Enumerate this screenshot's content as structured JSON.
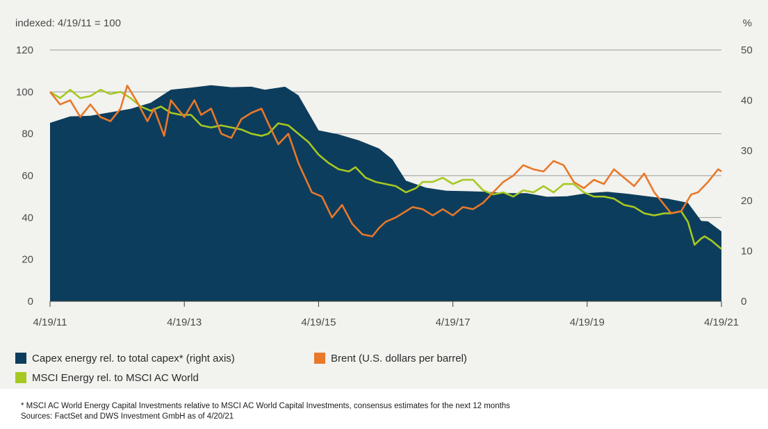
{
  "chart_data": {
    "type": "line",
    "left_axis_note": "indexed: 4/19/11 = 100",
    "right_axis_note": "%",
    "x_tick_labels": [
      "4/19/11",
      "4/19/13",
      "4/19/15",
      "4/19/17",
      "4/19/19",
      "4/19/21"
    ],
    "x_range": [
      2011.3,
      2021.3
    ],
    "left_axis": {
      "range": [
        0,
        120
      ],
      "ticks": [
        "0",
        "20",
        "40",
        "60",
        "80",
        "100",
        "120"
      ]
    },
    "right_axis": {
      "range": [
        0,
        50
      ],
      "ticks": [
        "0",
        "10",
        "20",
        "30",
        "40",
        "50"
      ]
    },
    "grid": "horizontal",
    "legend_position": "bottom",
    "series": [
      {
        "name": "Capex energy rel. to total capex* (right axis)",
        "type": "area",
        "axis": "right",
        "color": "#0d3d5c",
        "points": [
          [
            2011.3,
            35.5
          ],
          [
            2011.6,
            36.8
          ],
          [
            2011.9,
            36.9
          ],
          [
            2012.2,
            37.6
          ],
          [
            2012.5,
            38.3
          ],
          [
            2012.8,
            39.5
          ],
          [
            2013.1,
            42.1
          ],
          [
            2013.4,
            42.5
          ],
          [
            2013.7,
            43.0
          ],
          [
            2014.0,
            42.6
          ],
          [
            2014.3,
            42.7
          ],
          [
            2014.5,
            42.1
          ],
          [
            2014.8,
            42.7
          ],
          [
            2015.0,
            41.0
          ],
          [
            2015.3,
            34.0
          ],
          [
            2015.6,
            33.2
          ],
          [
            2015.9,
            32.0
          ],
          [
            2016.2,
            30.4
          ],
          [
            2016.4,
            28.2
          ],
          [
            2016.6,
            24.0
          ],
          [
            2016.9,
            22.6
          ],
          [
            2017.2,
            22.0
          ],
          [
            2017.5,
            21.9
          ],
          [
            2017.8,
            21.8
          ],
          [
            2018.1,
            21.5
          ],
          [
            2018.4,
            21.5
          ],
          [
            2018.7,
            20.8
          ],
          [
            2019.0,
            20.9
          ],
          [
            2019.3,
            21.5
          ],
          [
            2019.6,
            21.8
          ],
          [
            2019.9,
            21.4
          ],
          [
            2020.2,
            20.9
          ],
          [
            2020.5,
            20.4
          ],
          [
            2020.8,
            19.6
          ],
          [
            2021.0,
            16.0
          ],
          [
            2021.1,
            15.9
          ],
          [
            2021.3,
            13.9
          ]
        ]
      },
      {
        "name": "Brent (U.S. dollars per barrel)",
        "type": "line",
        "axis": "left",
        "color": "#e8782a",
        "points": [
          [
            2011.3,
            100
          ],
          [
            2011.45,
            94
          ],
          [
            2011.6,
            96
          ],
          [
            2011.75,
            88
          ],
          [
            2011.9,
            94
          ],
          [
            2012.05,
            88
          ],
          [
            2012.2,
            86
          ],
          [
            2012.35,
            92
          ],
          [
            2012.45,
            103
          ],
          [
            2012.6,
            95
          ],
          [
            2012.75,
            86
          ],
          [
            2012.85,
            92
          ],
          [
            2013.0,
            79
          ],
          [
            2013.1,
            96
          ],
          [
            2013.2,
            92
          ],
          [
            2013.3,
            88
          ],
          [
            2013.45,
            96
          ],
          [
            2013.55,
            89
          ],
          [
            2013.7,
            92
          ],
          [
            2013.85,
            80
          ],
          [
            2014.0,
            78
          ],
          [
            2014.15,
            87
          ],
          [
            2014.3,
            90
          ],
          [
            2014.45,
            92
          ],
          [
            2014.55,
            85
          ],
          [
            2014.7,
            75
          ],
          [
            2014.85,
            80
          ],
          [
            2015.0,
            66
          ],
          [
            2015.2,
            52
          ],
          [
            2015.35,
            50
          ],
          [
            2015.5,
            40
          ],
          [
            2015.65,
            46
          ],
          [
            2015.8,
            37
          ],
          [
            2015.95,
            32
          ],
          [
            2016.1,
            31
          ],
          [
            2016.2,
            35
          ],
          [
            2016.3,
            38
          ],
          [
            2016.45,
            40
          ],
          [
            2016.6,
            43
          ],
          [
            2016.7,
            45
          ],
          [
            2016.85,
            44
          ],
          [
            2017.0,
            41
          ],
          [
            2017.15,
            44
          ],
          [
            2017.3,
            41
          ],
          [
            2017.45,
            45
          ],
          [
            2017.6,
            44
          ],
          [
            2017.75,
            47
          ],
          [
            2017.9,
            52
          ],
          [
            2018.05,
            57
          ],
          [
            2018.2,
            60
          ],
          [
            2018.35,
            65
          ],
          [
            2018.5,
            63
          ],
          [
            2018.65,
            62
          ],
          [
            2018.8,
            67
          ],
          [
            2018.95,
            65
          ],
          [
            2019.1,
            57
          ],
          [
            2019.25,
            54
          ],
          [
            2019.4,
            58
          ],
          [
            2019.55,
            56
          ],
          [
            2019.7,
            63
          ],
          [
            2019.85,
            59
          ],
          [
            2020.0,
            55
          ],
          [
            2020.15,
            61
          ],
          [
            2020.3,
            52
          ],
          [
            2020.45,
            46
          ],
          [
            2020.55,
            42
          ],
          [
            2020.7,
            43
          ],
          [
            2020.85,
            51
          ],
          [
            2020.95,
            52
          ],
          [
            2021.1,
            57
          ],
          [
            2021.25,
            63
          ],
          [
            2021.3,
            62
          ]
        ]
      },
      {
        "name": "MSCI Energy rel. to MSCI AC World",
        "type": "line",
        "axis": "left",
        "color": "#a6c822",
        "points": [
          [
            2011.3,
            100
          ],
          [
            2011.45,
            97
          ],
          [
            2011.6,
            101
          ],
          [
            2011.75,
            97
          ],
          [
            2011.9,
            98
          ],
          [
            2012.05,
            101
          ],
          [
            2012.2,
            99
          ],
          [
            2012.35,
            100
          ],
          [
            2012.5,
            97
          ],
          [
            2012.65,
            93
          ],
          [
            2012.8,
            91
          ],
          [
            2012.95,
            93
          ],
          [
            2013.1,
            90
          ],
          [
            2013.25,
            89
          ],
          [
            2013.4,
            89
          ],
          [
            2013.55,
            84
          ],
          [
            2013.7,
            83
          ],
          [
            2013.85,
            84
          ],
          [
            2014.0,
            83
          ],
          [
            2014.15,
            82
          ],
          [
            2014.3,
            80
          ],
          [
            2014.45,
            79
          ],
          [
            2014.55,
            80
          ],
          [
            2014.7,
            85
          ],
          [
            2014.85,
            84
          ],
          [
            2015.0,
            80
          ],
          [
            2015.15,
            76
          ],
          [
            2015.3,
            70
          ],
          [
            2015.45,
            66
          ],
          [
            2015.6,
            63
          ],
          [
            2015.75,
            62
          ],
          [
            2015.85,
            64
          ],
          [
            2016.0,
            59
          ],
          [
            2016.15,
            57
          ],
          [
            2016.3,
            56
          ],
          [
            2016.45,
            55
          ],
          [
            2016.6,
            52
          ],
          [
            2016.75,
            54
          ],
          [
            2016.85,
            57
          ],
          [
            2017.0,
            57
          ],
          [
            2017.15,
            59
          ],
          [
            2017.3,
            56
          ],
          [
            2017.45,
            58
          ],
          [
            2017.6,
            58
          ],
          [
            2017.75,
            53
          ],
          [
            2017.9,
            51
          ],
          [
            2018.05,
            52
          ],
          [
            2018.2,
            50
          ],
          [
            2018.35,
            53
          ],
          [
            2018.5,
            52
          ],
          [
            2018.65,
            55
          ],
          [
            2018.8,
            52
          ],
          [
            2018.95,
            56
          ],
          [
            2019.1,
            56
          ],
          [
            2019.25,
            52
          ],
          [
            2019.4,
            50
          ],
          [
            2019.55,
            50
          ],
          [
            2019.7,
            49
          ],
          [
            2019.85,
            46
          ],
          [
            2020.0,
            45
          ],
          [
            2020.15,
            42
          ],
          [
            2020.3,
            41
          ],
          [
            2020.45,
            42
          ],
          [
            2020.55,
            42
          ],
          [
            2020.7,
            43
          ],
          [
            2020.8,
            38
          ],
          [
            2020.9,
            27
          ],
          [
            2021.0,
            30
          ],
          [
            2021.05,
            31
          ],
          [
            2021.15,
            29
          ],
          [
            2021.3,
            25
          ]
        ]
      }
    ]
  },
  "legend": {
    "items": [
      {
        "label": "Capex energy rel. to total capex* (right axis)",
        "color": "#0d3d5c"
      },
      {
        "label": "Brent (U.S. dollars per barrel)",
        "color": "#e8782a"
      },
      {
        "label": "MSCI Energy rel. to MSCI AC World",
        "color": "#a6c822"
      }
    ]
  },
  "footnote": {
    "line1": "* MSCI AC World Energy Capital Investments relative to MSCI AC World Capital Investments, consensus estimates for the next 12 months",
    "line2": "Sources: FactSet and DWS Investment GmbH as of 4/20/21"
  }
}
